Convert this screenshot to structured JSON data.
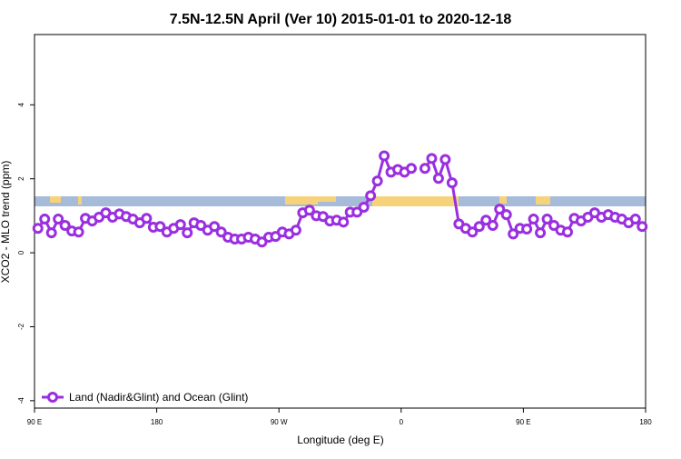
{
  "chart_data": {
    "type": "line",
    "title": "7.5N-12.5N April (Ver 10)   2015-01-01 to 2020-12-18",
    "x_label": "Longitude (deg E)",
    "y_label": "XCO2 - MLO trend (ppm)",
    "x": [
      92.5,
      97.5,
      102.5,
      107.5,
      112.5,
      117.5,
      122.5,
      127.5,
      132.5,
      137.5,
      142.5,
      147.5,
      152.5,
      157.5,
      162.5,
      167.5,
      172.5,
      177.5,
      182.5,
      187.5,
      192.5,
      197.5,
      202.5,
      207.5,
      212.5,
      217.5,
      222.5,
      227.5,
      232.5,
      237.5,
      242.5,
      247.5,
      252.5,
      257.5,
      262.5,
      267.5,
      272.5,
      277.5,
      282.5,
      287.5,
      292.5,
      297.5,
      302.5,
      307.5,
      312.5,
      317.5,
      322.5,
      327.5,
      332.5,
      337.5,
      342.5,
      347.5,
      352.5,
      357.5,
      362.5,
      367.5,
      372.5,
      377.5,
      382.5,
      387.5,
      392.5,
      397.5,
      402.5,
      407.5,
      412.5,
      417.5,
      422.5,
      427.5,
      432.5,
      437.5,
      442.5,
      447.5,
      452.5,
      457.5,
      462.5,
      467.5,
      472.5,
      477.5,
      482.5,
      487.5,
      492.5,
      497.5,
      502.5,
      507.5,
      512.5,
      517.5,
      522.5,
      527.5,
      532.5,
      537.5
    ],
    "series": [
      {
        "name": "Land (Nadir&Glint) and Ocean (Glint)",
        "color": "#9a2fe0",
        "values": [
          0.66,
          0.91,
          0.54,
          0.91,
          0.74,
          0.59,
          0.56,
          0.93,
          0.86,
          0.96,
          1.08,
          0.96,
          1.05,
          0.98,
          0.91,
          0.81,
          0.93,
          0.69,
          0.71,
          0.56,
          0.66,
          0.76,
          0.54,
          0.81,
          0.74,
          0.61,
          0.71,
          0.56,
          0.42,
          0.37,
          0.37,
          0.42,
          0.37,
          0.29,
          0.42,
          0.44,
          0.56,
          0.51,
          0.61,
          1.08,
          1.15,
          1.0,
          0.98,
          0.86,
          0.88,
          0.83,
          1.1,
          1.1,
          1.23,
          1.54,
          1.94,
          2.62,
          2.18,
          2.25,
          2.18,
          2.28,
          null,
          2.28,
          2.55,
          2.01,
          2.52,
          1.89,
          0.78,
          0.66,
          0.56,
          0.71,
          0.88,
          0.74,
          1.18,
          1.03,
          0.51,
          0.66,
          0.64,
          0.91,
          0.54,
          0.91,
          0.74,
          0.61,
          0.56,
          0.93,
          0.86,
          0.96,
          1.08,
          0.96,
          1.03,
          0.96,
          0.91,
          0.81,
          0.91,
          0.71
        ]
      }
    ],
    "xlim": [
      90,
      540
    ],
    "xticks": [
      {
        "value": 90,
        "label": "90 E"
      },
      {
        "value": 180,
        "label": "180"
      },
      {
        "value": 270,
        "label": "90 W"
      },
      {
        "value": 360,
        "label": "0"
      },
      {
        "value": 450,
        "label": "90 E"
      },
      {
        "value": 540,
        "label": "180"
      }
    ],
    "ylim": [
      -4.2,
      5.9
    ],
    "yticks": [
      -4,
      -2,
      0,
      2,
      4
    ],
    "legend": "bottom-left"
  }
}
